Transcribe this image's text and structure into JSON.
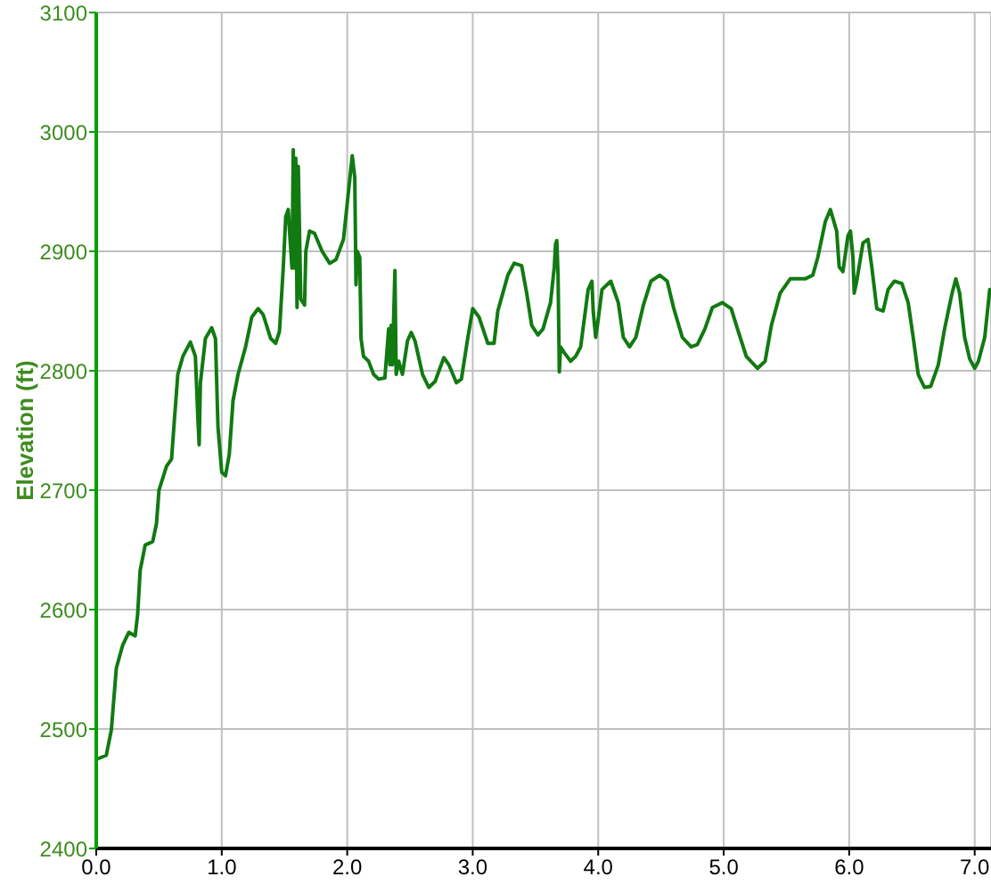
{
  "chart_data": {
    "type": "line",
    "ylabel": "Elevation (ft)",
    "x": [
      0.01,
      0.08,
      0.12,
      0.16,
      0.21,
      0.26,
      0.31,
      0.33,
      0.35,
      0.39,
      0.45,
      0.48,
      0.5,
      0.56,
      0.6,
      0.62,
      0.65,
      0.69,
      0.75,
      0.79,
      0.81,
      0.82,
      0.83,
      0.87,
      0.92,
      0.95,
      0.97,
      1.0,
      1.03,
      1.06,
      1.09,
      1.13,
      1.19,
      1.24,
      1.29,
      1.33,
      1.39,
      1.43,
      1.46,
      1.49,
      1.51,
      1.53,
      1.54,
      1.56,
      1.57,
      1.58,
      1.59,
      1.6,
      1.61,
      1.63,
      1.66,
      1.67,
      1.7,
      1.74,
      1.8,
      1.86,
      1.91,
      1.97,
      2.0,
      2.04,
      2.06,
      2.07,
      2.08,
      2.1,
      2.11,
      2.13,
      2.17,
      2.21,
      2.25,
      2.3,
      2.33,
      2.34,
      2.35,
      2.36,
      2.38,
      2.39,
      2.41,
      2.44,
      2.48,
      2.51,
      2.54,
      2.6,
      2.65,
      2.7,
      2.77,
      2.81,
      2.87,
      2.91,
      2.96,
      3.0,
      3.05,
      3.12,
      3.17,
      3.2,
      3.24,
      3.28,
      3.33,
      3.39,
      3.43,
      3.47,
      3.52,
      3.56,
      3.62,
      3.65,
      3.66,
      3.67,
      3.68,
      3.69,
      3.7,
      3.73,
      3.78,
      3.82,
      3.86,
      3.92,
      3.95,
      3.96,
      3.98,
      4.0,
      4.03,
      4.1,
      4.16,
      4.2,
      4.25,
      4.3,
      4.36,
      4.42,
      4.49,
      4.55,
      4.6,
      4.67,
      4.74,
      4.79,
      4.85,
      4.91,
      4.99,
      5.06,
      5.11,
      5.18,
      5.27,
      5.33,
      5.38,
      5.45,
      5.53,
      5.58,
      5.65,
      5.71,
      5.75,
      5.81,
      5.85,
      5.9,
      5.92,
      5.95,
      5.99,
      6.01,
      6.03,
      6.04,
      6.06,
      6.11,
      6.15,
      6.18,
      6.22,
      6.27,
      6.31,
      6.36,
      6.42,
      6.47,
      6.51,
      6.55,
      6.6,
      6.65,
      6.71,
      6.76,
      6.82,
      6.85,
      6.88,
      6.92,
      6.96,
      7.0,
      7.03,
      7.08,
      7.12
    ],
    "series": [
      {
        "color": "#117a11",
        "values": [
          2475,
          2478,
          2499,
          2551,
          2570,
          2581,
          2578,
          2596,
          2633,
          2654,
          2657,
          2672,
          2700,
          2720,
          2726,
          2755,
          2797,
          2812,
          2824,
          2812,
          2760,
          2738,
          2790,
          2827,
          2836,
          2827,
          2753,
          2715,
          2712,
          2730,
          2775,
          2797,
          2820,
          2845,
          2852,
          2847,
          2827,
          2823,
          2833,
          2886,
          2929,
          2935,
          2917,
          2886,
          2985,
          2886,
          2978,
          2853,
          2971,
          2860,
          2855,
          2900,
          2917,
          2915,
          2900,
          2890,
          2893,
          2910,
          2940,
          2980,
          2962,
          2872,
          2900,
          2895,
          2827,
          2812,
          2808,
          2797,
          2793,
          2794,
          2835,
          2805,
          2838,
          2805,
          2884,
          2797,
          2808,
          2797,
          2825,
          2832,
          2825,
          2797,
          2786,
          2791,
          2811,
          2805,
          2790,
          2793,
          2827,
          2852,
          2845,
          2823,
          2823,
          2850,
          2865,
          2880,
          2890,
          2888,
          2865,
          2838,
          2830,
          2835,
          2857,
          2887,
          2906,
          2909,
          2880,
          2799,
          2820,
          2815,
          2808,
          2812,
          2820,
          2868,
          2875,
          2850,
          2828,
          2843,
          2868,
          2875,
          2857,
          2828,
          2820,
          2828,
          2855,
          2875,
          2880,
          2875,
          2853,
          2828,
          2820,
          2822,
          2835,
          2853,
          2857,
          2852,
          2835,
          2812,
          2802,
          2808,
          2838,
          2865,
          2877,
          2877,
          2877,
          2880,
          2895,
          2925,
          2935,
          2917,
          2887,
          2883,
          2913,
          2917,
          2895,
          2865,
          2875,
          2907,
          2910,
          2887,
          2852,
          2850,
          2868,
          2875,
          2873,
          2857,
          2828,
          2797,
          2786,
          2787,
          2805,
          2835,
          2865,
          2877,
          2865,
          2828,
          2810,
          2802,
          2808,
          2828,
          2868
        ]
      }
    ],
    "xlim": [
      0,
      7.13
    ],
    "xticks": [
      {
        "value": 0,
        "label": "0.0"
      },
      {
        "value": 1,
        "label": "1.0"
      },
      {
        "value": 2,
        "label": "2.0"
      },
      {
        "value": 3,
        "label": "3.0"
      },
      {
        "value": 4,
        "label": "4.0"
      },
      {
        "value": 5,
        "label": "5.0"
      },
      {
        "value": 6,
        "label": "6.0"
      },
      {
        "value": 7,
        "label": "7.0"
      }
    ],
    "ylim": [
      2400,
      3100
    ],
    "yticks": [
      2400,
      2500,
      2600,
      2700,
      2800,
      2900,
      3000,
      3100
    ],
    "grid": true
  }
}
